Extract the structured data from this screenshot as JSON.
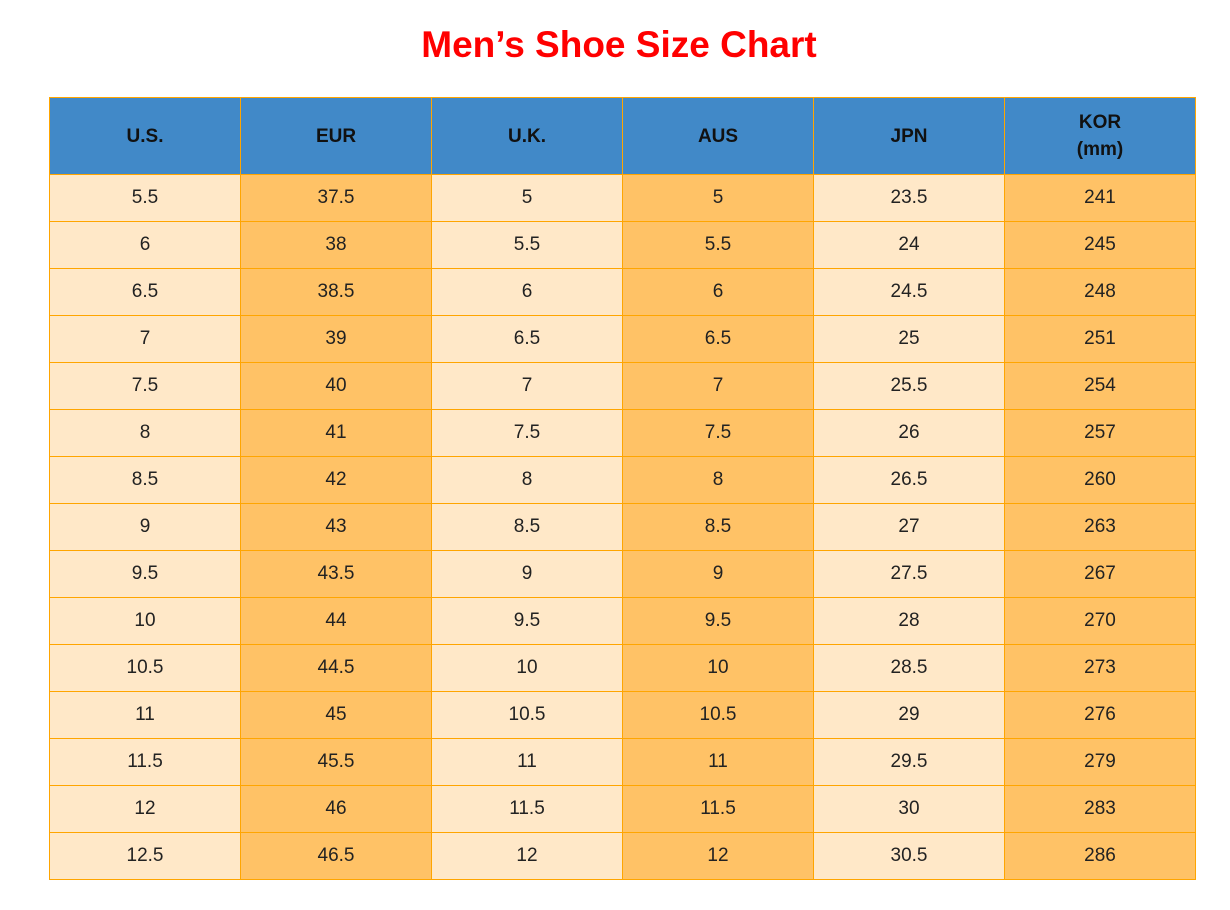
{
  "title": "Men’s Shoe Size Chart",
  "colors": {
    "title": "#ff0000",
    "header_bg": "#4189c8",
    "light_col": "#ffe8c8",
    "dark_col": "#ffc266",
    "border": "#ffa500"
  },
  "chart_data": {
    "type": "table",
    "title": "Men’s Shoe Size Chart",
    "columns": [
      [
        "U.S."
      ],
      [
        "EUR"
      ],
      [
        "U.K."
      ],
      [
        "AUS"
      ],
      [
        "JPN"
      ],
      [
        "KOR",
        "(mm)"
      ]
    ],
    "rows": [
      [
        "5.5",
        "37.5",
        "5",
        "5",
        "23.5",
        "241"
      ],
      [
        "6",
        "38",
        "5.5",
        "5.5",
        "24",
        "245"
      ],
      [
        "6.5",
        "38.5",
        "6",
        "6",
        "24.5",
        "248"
      ],
      [
        "7",
        "39",
        "6.5",
        "6.5",
        "25",
        "251"
      ],
      [
        "7.5",
        "40",
        "7",
        "7",
        "25.5",
        "254"
      ],
      [
        "8",
        "41",
        "7.5",
        "7.5",
        "26",
        "257"
      ],
      [
        "8.5",
        "42",
        "8",
        "8",
        "26.5",
        "260"
      ],
      [
        "9",
        "43",
        "8.5",
        "8.5",
        "27",
        "263"
      ],
      [
        "9.5",
        "43.5",
        "9",
        "9",
        "27.5",
        "267"
      ],
      [
        "10",
        "44",
        "9.5",
        "9.5",
        "28",
        "270"
      ],
      [
        "10.5",
        "44.5",
        "10",
        "10",
        "28.5",
        "273"
      ],
      [
        "11",
        "45",
        "10.5",
        "10.5",
        "29",
        "276"
      ],
      [
        "11.5",
        "45.5",
        "11",
        "11",
        "29.5",
        "279"
      ],
      [
        "12",
        "46",
        "11.5",
        "11.5",
        "30",
        "283"
      ],
      [
        "12.5",
        "46.5",
        "12",
        "12",
        "30.5",
        "286"
      ]
    ]
  }
}
